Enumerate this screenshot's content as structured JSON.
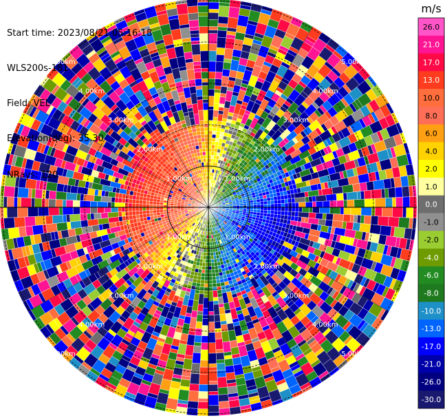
{
  "header": {
    "start_time": "Start time: 2023/08/21 05:16:18",
    "instrument": "WLS200s-181",
    "field": "Field: VEL",
    "elevation": "Elevation(deg): 35.30",
    "nrays": "NRays: 120"
  },
  "chart_data": {
    "type": "heatmap",
    "projection": "polar",
    "field": "VEL",
    "units": "m/s",
    "nrays": 120,
    "elevation_deg": 35.3,
    "range_rings_km": [
      1.0,
      2.0,
      3.0,
      4.0,
      5.0
    ],
    "ring_labels": [
      "1.00km",
      "2.00km",
      "3.00km",
      "4.00km",
      "5.00km"
    ],
    "max_range_km": 5.0,
    "colorbar": {
      "label": "m/s",
      "ticks": [
        "26.0",
        "21.0",
        "17.0",
        "13.0",
        "10.0",
        "8.0",
        "6.0",
        "4.0",
        "2.0",
        "1.0",
        "0.0",
        "-1.0",
        "-2.0",
        "-4.0",
        "-6.0",
        "-8.0",
        "-10.0",
        "-13.0",
        "-17.0",
        "-21.0",
        "-26.0",
        "-30.0"
      ],
      "colors": [
        "#ff55c8",
        "#ff1493",
        "#ff0a46",
        "#ff3c1e",
        "#ff6e3c",
        "#ff6e56",
        "#ffa014",
        "#ffd200",
        "#ffff00",
        "#ffffa0",
        "#6e6e6e",
        "#909090",
        "#9acd32",
        "#6e9b00",
        "#228b22",
        "#1f7a1f",
        "#1e90c8",
        "#0064ff",
        "#0000ff",
        "#0000aa",
        "#000080",
        "#191970"
      ]
    },
    "pattern": {
      "inner_radius_km": 2.0,
      "towards_azimuth_deg": 290,
      "away_azimuth_deg": 110,
      "max_inner_velocity": 17.0,
      "outer_noise": true
    }
  }
}
